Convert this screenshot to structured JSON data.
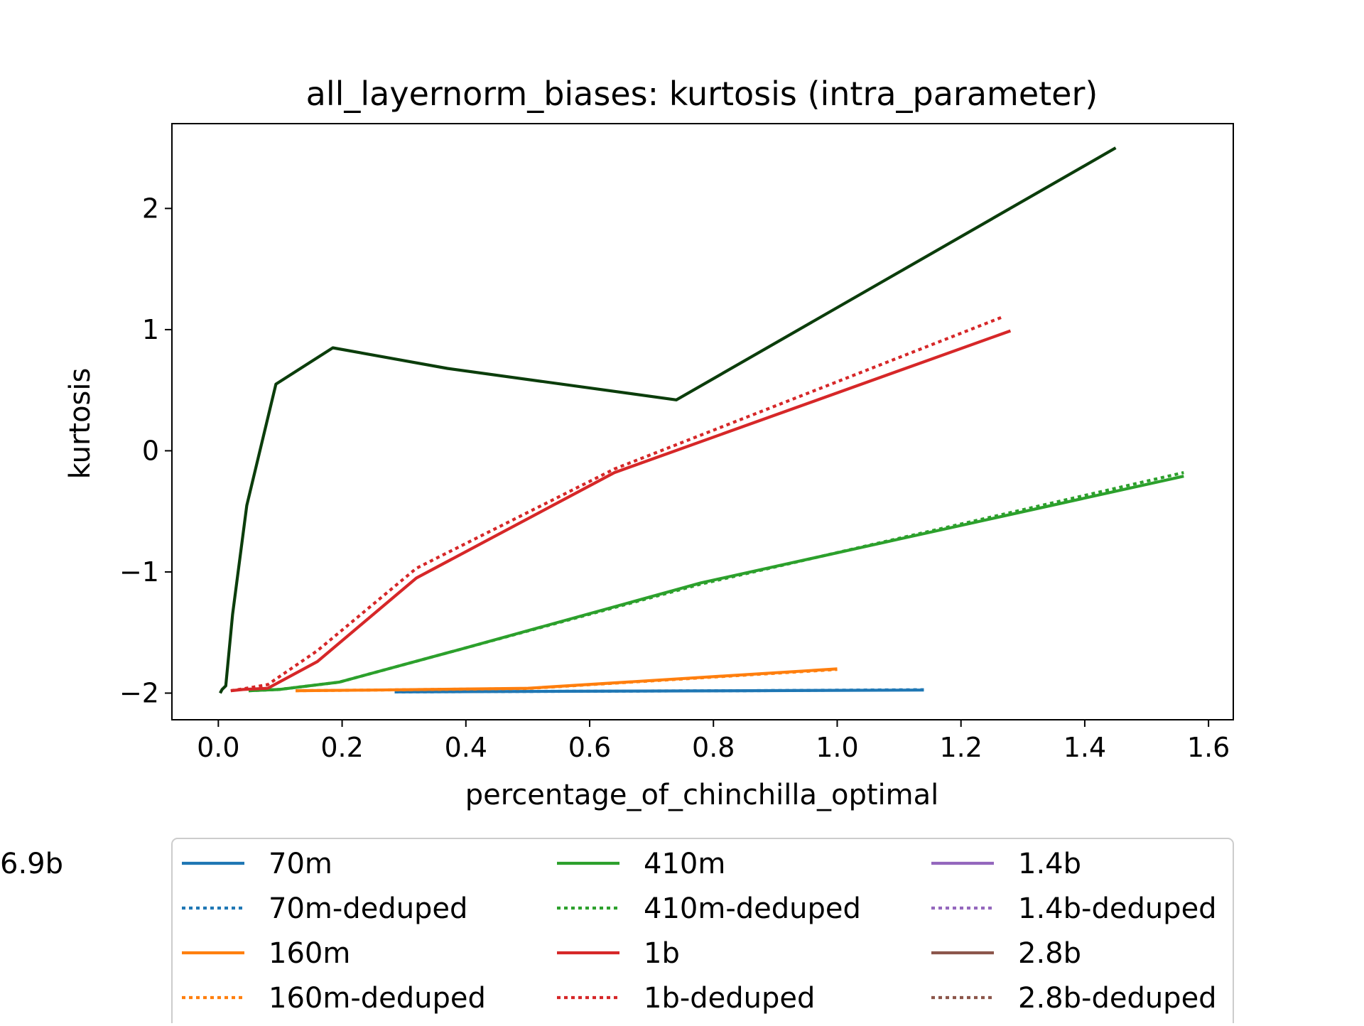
{
  "chart_data": {
    "type": "line",
    "title": "all_layernorm_biases: kurtosis (intra_parameter)",
    "xlabel": "percentage_of_chinchilla_optimal",
    "ylabel": "kurtosis",
    "xlim": [
      -0.075,
      1.64
    ],
    "ylim": [
      -2.22,
      2.7
    ],
    "xticks": [
      0.0,
      0.2,
      0.4,
      0.6,
      0.8,
      1.0,
      1.2,
      1.4,
      1.6
    ],
    "xtick_labels": [
      "0.0",
      "0.2",
      "0.4",
      "0.6",
      "0.8",
      "1.0",
      "1.2",
      "1.4",
      "1.6"
    ],
    "yticks": [
      -2,
      -1,
      0,
      1,
      2
    ],
    "ytick_labels": [
      "−2",
      "−1",
      "0",
      "1",
      "2"
    ],
    "grid": false,
    "legend_placement": "below plot, 3 columns",
    "series": [
      {
        "name": "70m",
        "color": "#1f77b4",
        "dash": "solid",
        "x": [
          0.285,
          0.57,
          0.855,
          1.14
        ],
        "y": [
          -1.99,
          -1.985,
          -1.98,
          -1.975
        ]
      },
      {
        "name": "70m-deduped",
        "color": "#1f77b4",
        "dash": "dotted",
        "x": [
          0.285,
          0.57,
          0.855,
          1.14
        ],
        "y": [
          -1.99,
          -1.985,
          -1.98,
          -1.972
        ]
      },
      {
        "name": "160m",
        "color": "#ff7f0e",
        "dash": "solid",
        "x": [
          0.125,
          0.25,
          0.5,
          1.0
        ],
        "y": [
          -1.98,
          -1.975,
          -1.96,
          -1.8
        ]
      },
      {
        "name": "160m-deduped",
        "color": "#ff7f0e",
        "dash": "dotted",
        "x": [
          0.125,
          0.25,
          0.5,
          1.0
        ],
        "y": [
          -1.98,
          -1.975,
          -1.962,
          -1.805
        ]
      },
      {
        "name": "410m",
        "color": "#2ca02c",
        "dash": "solid",
        "x": [
          0.049,
          0.098,
          0.195,
          0.39,
          0.78,
          1.56
        ],
        "y": [
          -1.98,
          -1.97,
          -1.91,
          -1.64,
          -1.09,
          -0.21
        ]
      },
      {
        "name": "410m-deduped",
        "color": "#2ca02c",
        "dash": "dotted",
        "x": [
          0.049,
          0.098,
          0.195,
          0.39,
          0.78,
          1.56
        ],
        "y": [
          -1.98,
          -1.97,
          -1.91,
          -1.64,
          -1.1,
          -0.18
        ]
      },
      {
        "name": "1b",
        "color": "#d62728",
        "dash": "solid",
        "x": [
          0.02,
          0.04,
          0.08,
          0.16,
          0.32,
          0.64,
          1.28
        ],
        "y": [
          -1.98,
          -1.97,
          -1.96,
          -1.74,
          -1.05,
          -0.18,
          0.99
        ]
      },
      {
        "name": "1b-deduped",
        "color": "#d62728",
        "dash": "dotted",
        "x": [
          0.02,
          0.04,
          0.08,
          0.16,
          0.32,
          0.64,
          1.27
        ],
        "y": [
          -1.98,
          -1.965,
          -1.93,
          -1.65,
          -0.97,
          -0.15,
          1.11
        ]
      },
      {
        "name": "1.4b",
        "color": "#9467bd",
        "dash": "solid",
        "x": [],
        "y": []
      },
      {
        "name": "1.4b-deduped",
        "color": "#9467bd",
        "dash": "dotted",
        "x": [],
        "y": []
      },
      {
        "name": "2.8b",
        "color": "#8c564b",
        "dash": "solid",
        "x": [],
        "y": []
      },
      {
        "name": "2.8b-deduped",
        "color": "#8c564b",
        "dash": "dotted",
        "x": [],
        "y": []
      },
      {
        "name": "6.9b",
        "color": "#0b3d0b",
        "dash": "solid",
        "x": [
          0.003,
          0.006,
          0.012,
          0.023,
          0.046,
          0.093,
          0.185,
          0.37,
          0.74,
          1.45
        ],
        "y": [
          -2.0,
          -1.97,
          -1.94,
          -1.35,
          -0.45,
          0.55,
          0.85,
          0.68,
          0.42,
          2.5
        ]
      }
    ]
  }
}
